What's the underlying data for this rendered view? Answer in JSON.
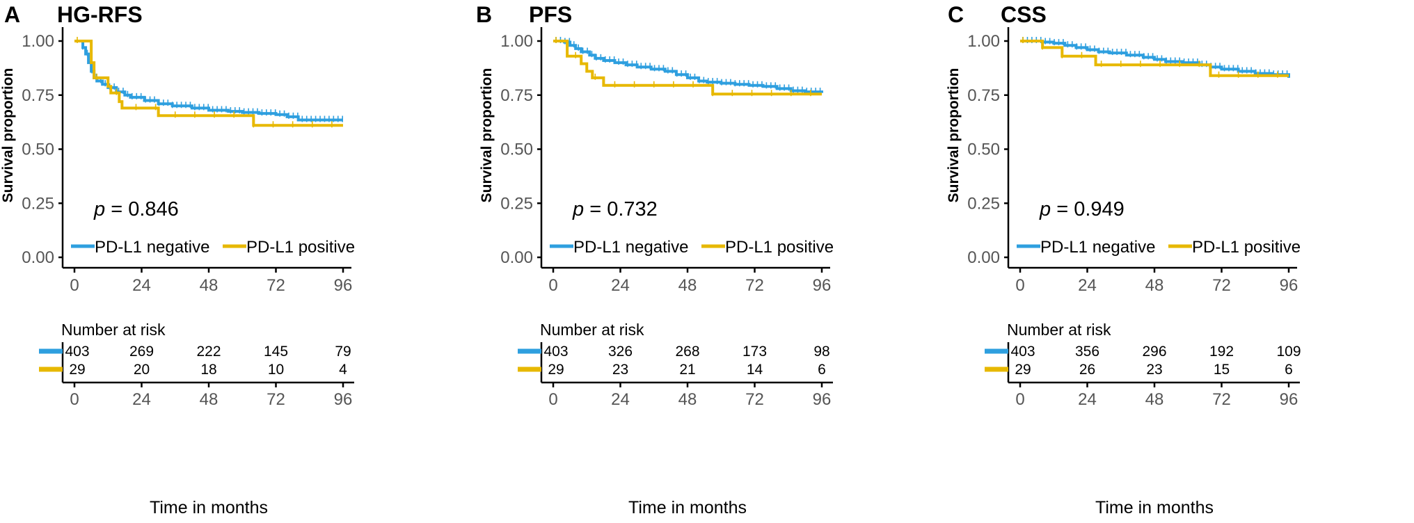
{
  "colors": {
    "negative": "#2E9FDF",
    "positive": "#E7B800",
    "axis": "#000000",
    "tick_text": "#555555"
  },
  "chart_data": [
    {
      "type": "line",
      "panel_letter": "A",
      "title": "HG-RFS",
      "xlabel": "Time in months",
      "ylabel": "Survival proportion",
      "x_ticks": [
        0,
        24,
        48,
        72,
        96
      ],
      "y_ticks": [
        "0.00",
        "0.25",
        "0.50",
        "0.75",
        "1.00"
      ],
      "xlim": [
        0,
        96
      ],
      "ylim": [
        0,
        1
      ],
      "grid": false,
      "p_value_label": "p",
      "p_value_text": " = 0.846",
      "legend_position": "bottom-inside",
      "series": [
        {
          "name": "PD-L1 negative",
          "key": "negative",
          "x": [
            2,
            3,
            4,
            5,
            6,
            7,
            8,
            10,
            12,
            15,
            18,
            20,
            25,
            30,
            35,
            42,
            48,
            55,
            60,
            66,
            72,
            76,
            80,
            96
          ],
          "y": [
            1.0,
            0.97,
            0.94,
            0.9,
            0.86,
            0.83,
            0.815,
            0.8,
            0.785,
            0.765,
            0.75,
            0.74,
            0.725,
            0.71,
            0.7,
            0.69,
            0.68,
            0.675,
            0.67,
            0.665,
            0.66,
            0.65,
            0.635,
            0.635
          ]
        },
        {
          "name": "PD-L1 positive",
          "key": "positive",
          "x": [
            0,
            6,
            7,
            12,
            13,
            16,
            17,
            30,
            64,
            96
          ],
          "y": [
            1.0,
            0.9,
            0.83,
            0.79,
            0.76,
            0.72,
            0.69,
            0.655,
            0.61,
            0.61
          ]
        }
      ],
      "risk_table": {
        "title": "Number at risk",
        "times": [
          0,
          24,
          48,
          72,
          96
        ],
        "rows": [
          {
            "key": "negative",
            "values": [
              "403",
              "269",
              "222",
              "145",
              "79"
            ]
          },
          {
            "key": "positive",
            "values": [
              "29",
              "20",
              "18",
              "10",
              "4"
            ]
          }
        ]
      }
    },
    {
      "type": "line",
      "panel_letter": "B",
      "title": "PFS",
      "xlabel": "Time in months",
      "ylabel": "Survival proportion",
      "x_ticks": [
        0,
        24,
        48,
        72,
        96
      ],
      "y_ticks": [
        "0.00",
        "0.25",
        "0.50",
        "0.75",
        "1.00"
      ],
      "xlim": [
        0,
        96
      ],
      "ylim": [
        0,
        1
      ],
      "grid": false,
      "p_value_label": "p",
      "p_value_text": " = 0.732",
      "legend_position": "bottom-inside",
      "series": [
        {
          "name": "PD-L1 negative",
          "key": "negative",
          "x": [
            0,
            4,
            6,
            8,
            10,
            13,
            15,
            18,
            22,
            26,
            30,
            35,
            40,
            44,
            48,
            52,
            55,
            60,
            65,
            70,
            75,
            80,
            85,
            90,
            96
          ],
          "y": [
            1.0,
            0.995,
            0.98,
            0.965,
            0.95,
            0.935,
            0.92,
            0.91,
            0.9,
            0.89,
            0.88,
            0.87,
            0.86,
            0.845,
            0.83,
            0.815,
            0.81,
            0.805,
            0.8,
            0.795,
            0.79,
            0.78,
            0.77,
            0.765,
            0.76
          ]
        },
        {
          "name": "PD-L1 positive",
          "key": "positive",
          "x": [
            0,
            5,
            10,
            12,
            14,
            18,
            57,
            96
          ],
          "y": [
            1.0,
            0.93,
            0.895,
            0.86,
            0.83,
            0.795,
            0.755,
            0.755
          ]
        }
      ],
      "risk_table": {
        "title": "Number at risk",
        "times": [
          0,
          24,
          48,
          72,
          96
        ],
        "rows": [
          {
            "key": "negative",
            "values": [
              "403",
              "326",
              "268",
              "173",
              "98"
            ]
          },
          {
            "key": "positive",
            "values": [
              "29",
              "23",
              "21",
              "14",
              "6"
            ]
          }
        ]
      }
    },
    {
      "type": "line",
      "panel_letter": "C",
      "title": "CSS",
      "xlabel": "Time in months",
      "ylabel": "Survival proportion",
      "x_ticks": [
        0,
        24,
        48,
        72,
        96
      ],
      "y_ticks": [
        "0.00",
        "0.25",
        "0.50",
        "0.75",
        "1.00"
      ],
      "xlim": [
        0,
        96
      ],
      "ylim": [
        0,
        1
      ],
      "grid": false,
      "p_value_label": "p",
      "p_value_text": " = 0.949",
      "legend_position": "bottom-inside",
      "series": [
        {
          "name": "PD-L1 negative",
          "key": "negative",
          "x": [
            0,
            8,
            12,
            16,
            20,
            24,
            28,
            32,
            38,
            44,
            48,
            52,
            58,
            64,
            68,
            72,
            78,
            84,
            90,
            96
          ],
          "y": [
            1.0,
            0.995,
            0.99,
            0.98,
            0.97,
            0.96,
            0.95,
            0.945,
            0.935,
            0.925,
            0.915,
            0.905,
            0.9,
            0.89,
            0.88,
            0.87,
            0.86,
            0.85,
            0.845,
            0.83
          ]
        },
        {
          "name": "PD-L1 positive",
          "key": "positive",
          "x": [
            0,
            8,
            15,
            27,
            68,
            96
          ],
          "y": [
            1.0,
            0.97,
            0.93,
            0.89,
            0.84,
            0.84
          ]
        }
      ],
      "risk_table": {
        "title": "Number at risk",
        "times": [
          0,
          24,
          48,
          72,
          96
        ],
        "rows": [
          {
            "key": "negative",
            "values": [
              "403",
              "356",
              "296",
              "192",
              "109"
            ]
          },
          {
            "key": "positive",
            "values": [
              "29",
              "26",
              "23",
              "15",
              "6"
            ]
          }
        ]
      }
    }
  ]
}
